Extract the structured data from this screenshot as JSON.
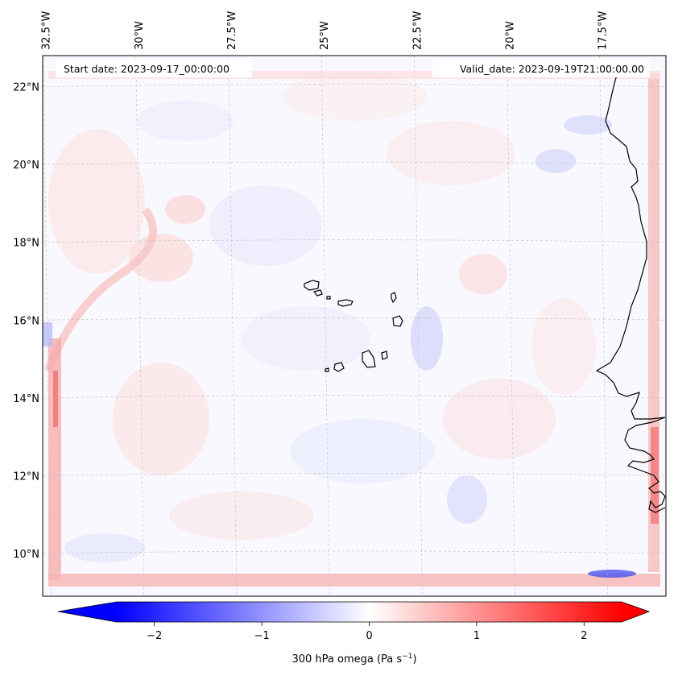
{
  "map": {
    "start_date_label": "Start date: 2023-09-17_00:00:00",
    "valid_date_label": "Valid_date: 2023-09-19T21:00:00.00",
    "lon_ticks": [
      {
        "lon": -32.5,
        "label": "32.5°W"
      },
      {
        "lon": -30.0,
        "label": "30°W"
      },
      {
        "lon": -27.5,
        "label": "27.5°W"
      },
      {
        "lon": -25.0,
        "label": "25°W"
      },
      {
        "lon": -22.5,
        "label": "22.5°W"
      },
      {
        "lon": -20.0,
        "label": "20°W"
      },
      {
        "lon": -17.5,
        "label": "17.5°W"
      }
    ],
    "lat_ticks": [
      {
        "lat": 22,
        "label": "22°N"
      },
      {
        "lat": 20,
        "label": "20°N"
      },
      {
        "lat": 18,
        "label": "18°N"
      },
      {
        "lat": 16,
        "label": "16°N"
      },
      {
        "lat": 14,
        "label": "14°N"
      },
      {
        "lat": 12,
        "label": "12°N"
      },
      {
        "lat": 10,
        "label": "10°N"
      }
    ],
    "extent": {
      "lon_min": -32.6,
      "lon_max": -15.8,
      "lat_min": 8.9,
      "lat_max": 22.8
    }
  },
  "colorbar": {
    "label": "300 hPa omega (Pa s",
    "label_sup": "−1",
    "label_close": ")",
    "min": -2.7,
    "max": 2.7,
    "ticks": [
      {
        "value": -2,
        "label": "−2"
      },
      {
        "value": -1,
        "label": "−1"
      },
      {
        "value": 0,
        "label": "0"
      },
      {
        "value": 1,
        "label": "1"
      },
      {
        "value": 2,
        "label": "2"
      }
    ],
    "colors": {
      "negative": "#0000ff",
      "neutral": "#ffffff",
      "positive": "#ff0000"
    }
  }
}
